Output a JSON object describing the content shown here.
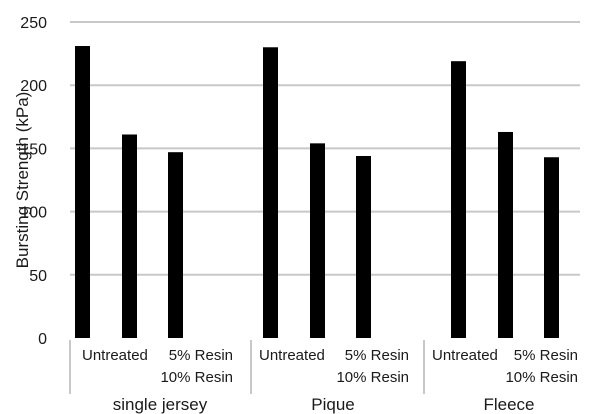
{
  "chart_data": {
    "type": "bar",
    "ylabel": "Bursting Strength (kPa)",
    "ylim": [
      0,
      250
    ],
    "yticks": [
      0,
      50,
      100,
      150,
      200,
      250
    ],
    "grid": true,
    "legend": "none",
    "bar_color": "#000000",
    "grid_color": "#c8c8c8",
    "groups": [
      {
        "name": "single jersey",
        "categories": [
          "Untreated",
          "5% Resin",
          "10% Resin"
        ],
        "values": [
          231,
          161,
          147
        ]
      },
      {
        "name": "Pique",
        "categories": [
          "Untreated",
          "5% Resin",
          "10% Resin"
        ],
        "values": [
          230,
          154,
          144
        ]
      },
      {
        "name": "Fleece",
        "categories": [
          "Untreated",
          "5% Resin",
          "10% Resin"
        ],
        "values": [
          219,
          163,
          143
        ]
      }
    ]
  }
}
